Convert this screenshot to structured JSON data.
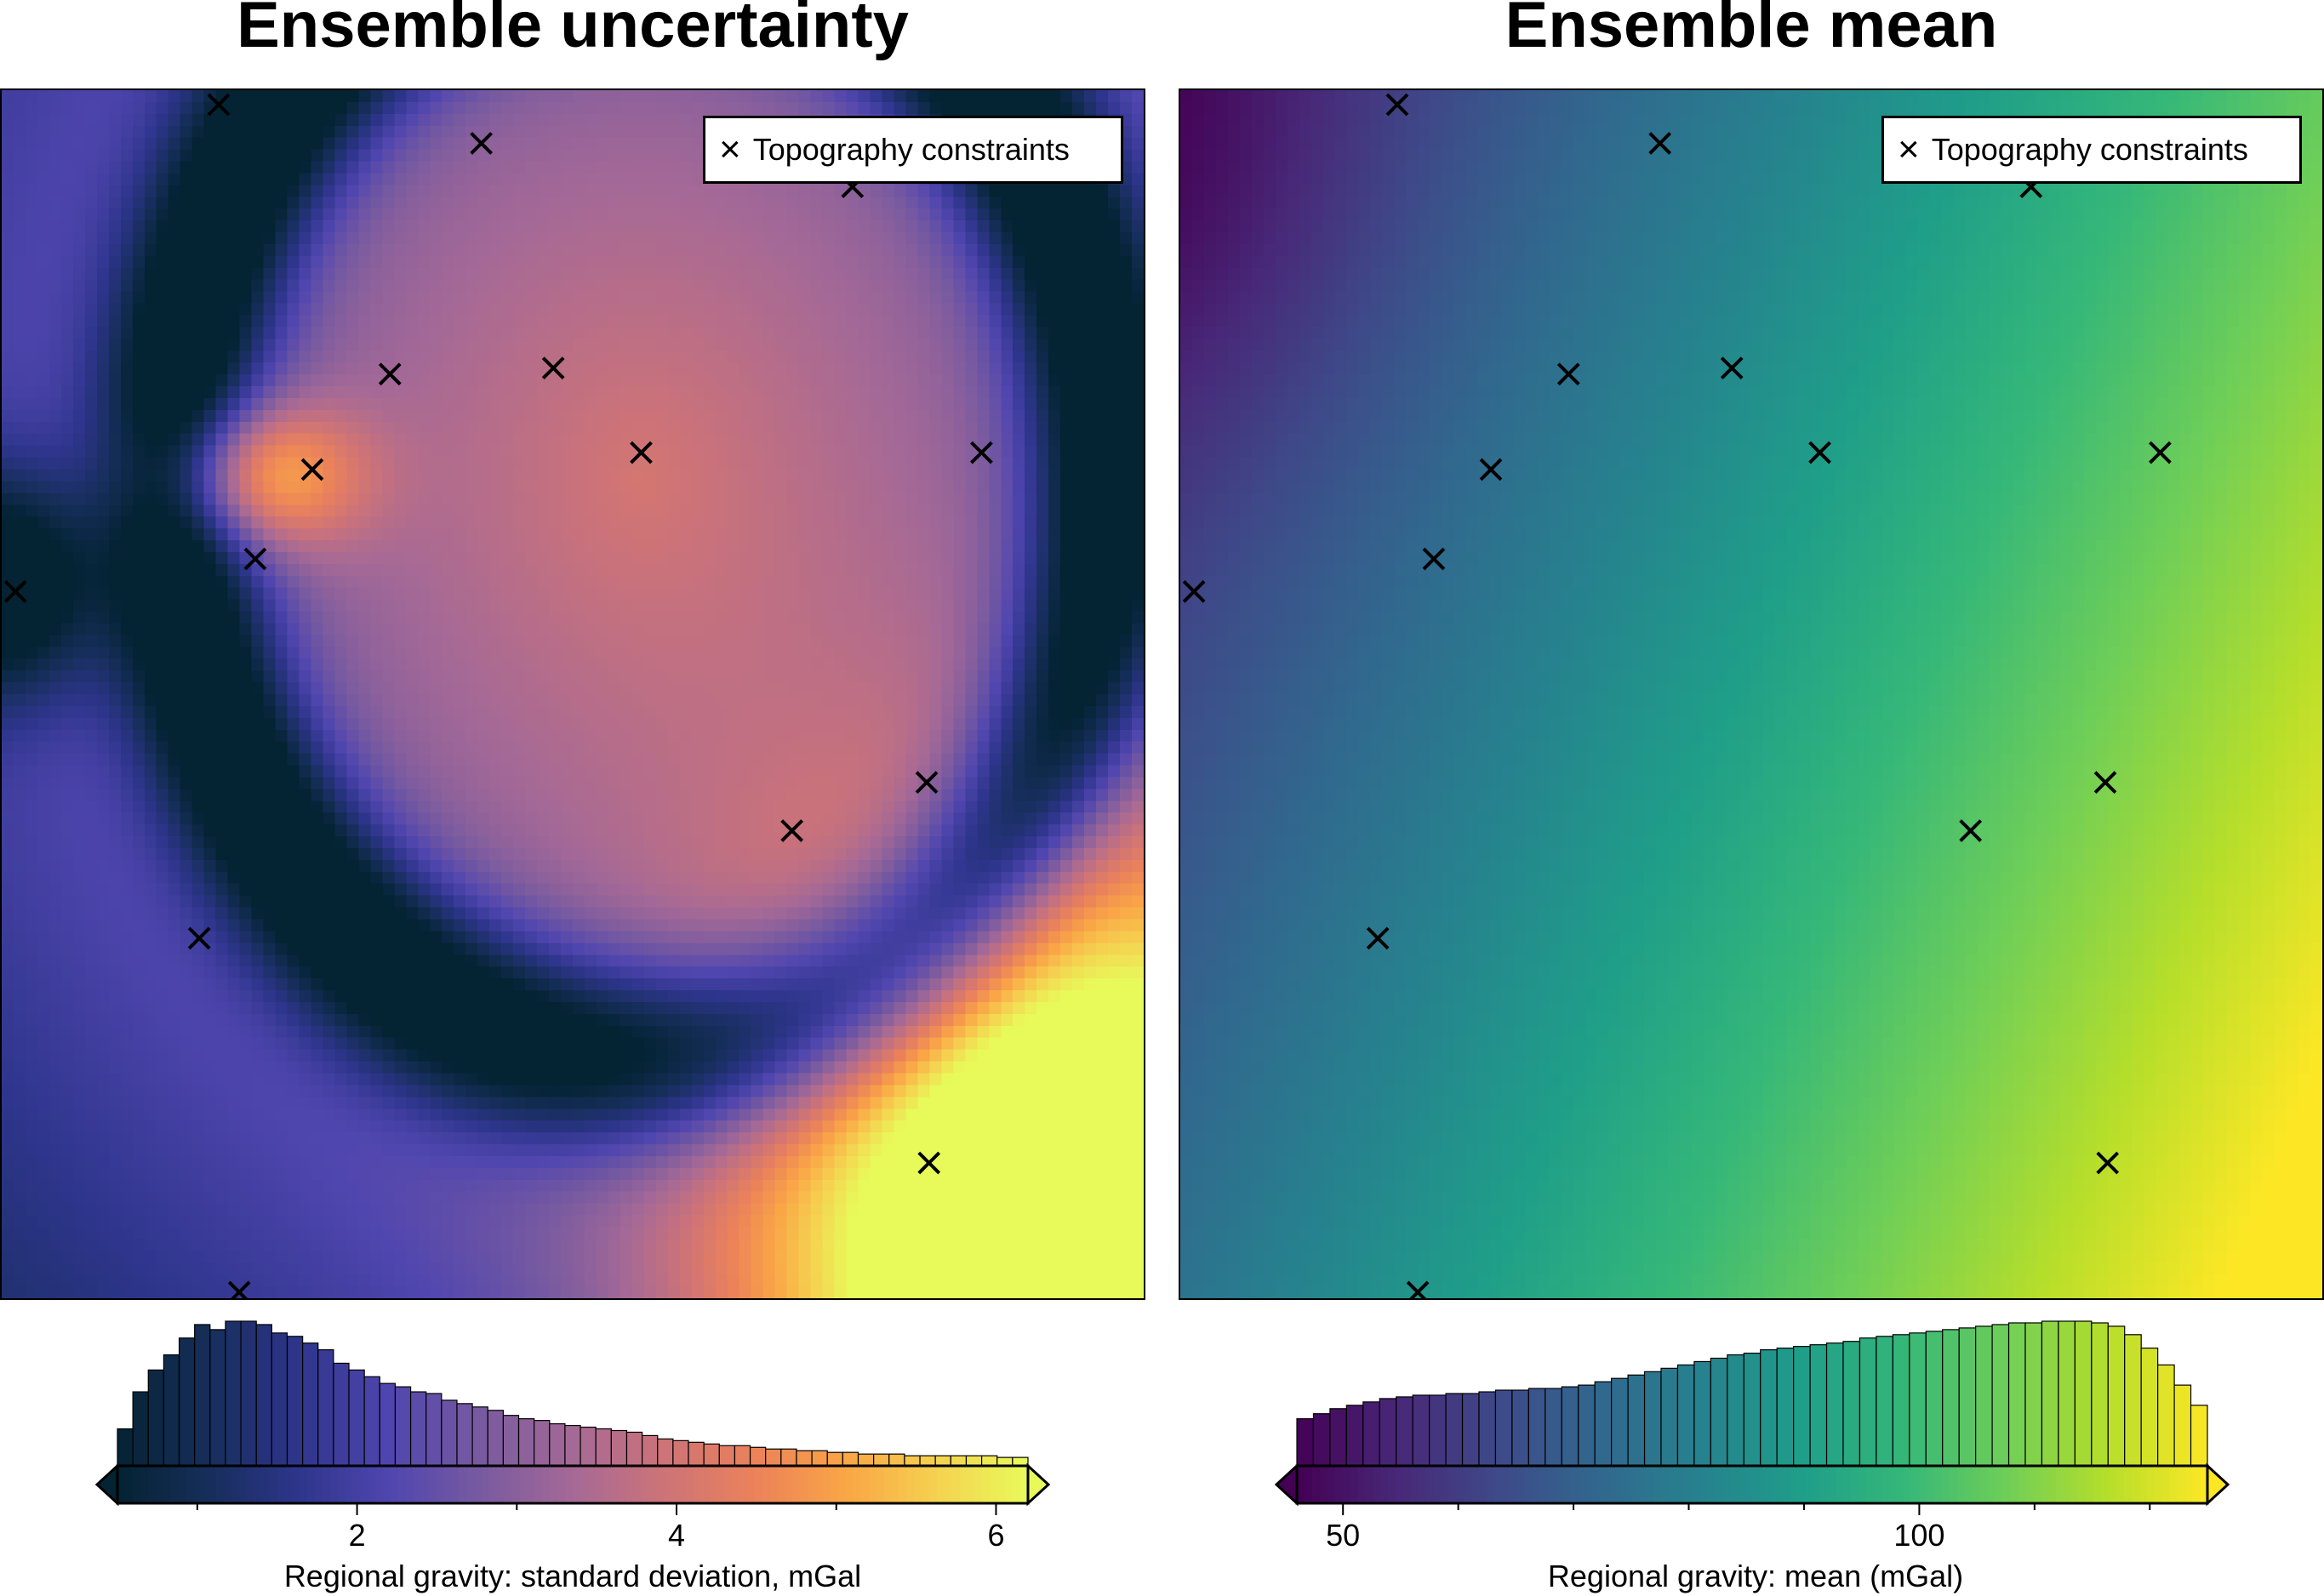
{
  "chart_data": [
    {
      "type": "heatmap",
      "title": "Ensemble uncertainty",
      "colormap": "thermal",
      "legend": {
        "label": "Topography constraints",
        "marker": "×",
        "placement": "top-right"
      },
      "constraint_points": [
        {
          "x": 0.19,
          "y": 0.988
        },
        {
          "x": 0.42,
          "y": 0.956
        },
        {
          "x": 0.745,
          "y": 0.92
        },
        {
          "x": 0.34,
          "y": 0.765
        },
        {
          "x": 0.483,
          "y": 0.77
        },
        {
          "x": 0.56,
          "y": 0.7
        },
        {
          "x": 0.858,
          "y": 0.7
        },
        {
          "x": 0.272,
          "y": 0.686
        },
        {
          "x": 0.222,
          "y": 0.612
        },
        {
          "x": 0.012,
          "y": 0.585
        },
        {
          "x": 0.81,
          "y": 0.427
        },
        {
          "x": 0.692,
          "y": 0.387
        },
        {
          "x": 0.173,
          "y": 0.298
        },
        {
          "x": 0.812,
          "y": 0.112
        },
        {
          "x": 0.208,
          "y": 0.005
        }
      ],
      "colorbar": {
        "label": "Regional gravity:  standard deviation, mGal",
        "range": [
          0.5,
          6.2
        ],
        "ticks": [
          2,
          4,
          6
        ],
        "minor_ticks": [
          1,
          3,
          5
        ],
        "extend": "both"
      },
      "histogram": {
        "bin_counts": [
          22,
          44,
          57,
          66,
          76,
          84,
          81,
          86,
          86,
          84,
          79,
          77,
          73,
          69,
          61,
          57,
          53,
          49,
          47,
          44,
          43,
          39,
          37,
          35,
          33,
          30,
          28,
          27,
          25,
          24,
          23,
          22,
          21,
          20,
          18,
          16,
          15,
          14,
          13,
          12,
          12,
          11,
          10,
          10,
          9,
          9,
          8,
          8,
          7,
          7,
          7,
          6,
          6,
          6,
          6,
          6,
          6,
          5,
          5
        ]
      }
    },
    {
      "type": "heatmap",
      "title": "Ensemble mean",
      "colormap": "viridis",
      "legend": {
        "label": "Topography constraints",
        "marker": "×",
        "placement": "top-right"
      },
      "constraint_points": [
        {
          "x": 0.19,
          "y": 0.988
        },
        {
          "x": 0.42,
          "y": 0.956
        },
        {
          "x": 0.745,
          "y": 0.92
        },
        {
          "x": 0.34,
          "y": 0.765
        },
        {
          "x": 0.483,
          "y": 0.77
        },
        {
          "x": 0.56,
          "y": 0.7
        },
        {
          "x": 0.858,
          "y": 0.7
        },
        {
          "x": 0.272,
          "y": 0.686
        },
        {
          "x": 0.222,
          "y": 0.612
        },
        {
          "x": 0.012,
          "y": 0.585
        },
        {
          "x": 0.81,
          "y": 0.427
        },
        {
          "x": 0.692,
          "y": 0.387
        },
        {
          "x": 0.173,
          "y": 0.298
        },
        {
          "x": 0.812,
          "y": 0.112
        },
        {
          "x": 0.208,
          "y": 0.005
        }
      ],
      "colorbar": {
        "label": "Regional gravity:  mean (mGal)",
        "range": [
          46,
          125
        ],
        "ticks": [
          50,
          100
        ],
        "minor_ticks": [
          60,
          70,
          80,
          90,
          110,
          120
        ],
        "extend": "both"
      },
      "histogram": {
        "bin_counts": [
          28,
          31,
          34,
          36,
          38,
          40,
          41,
          42,
          42,
          43,
          43,
          44,
          45,
          45,
          46,
          46,
          47,
          48,
          50,
          52,
          54,
          56,
          58,
          60,
          62,
          64,
          66,
          67,
          69,
          70,
          71,
          72,
          73,
          74,
          76,
          77,
          78,
          79,
          80,
          81,
          82,
          83,
          84,
          85,
          85,
          86,
          86,
          86,
          85,
          83,
          78,
          70,
          60,
          48,
          36
        ]
      }
    }
  ]
}
